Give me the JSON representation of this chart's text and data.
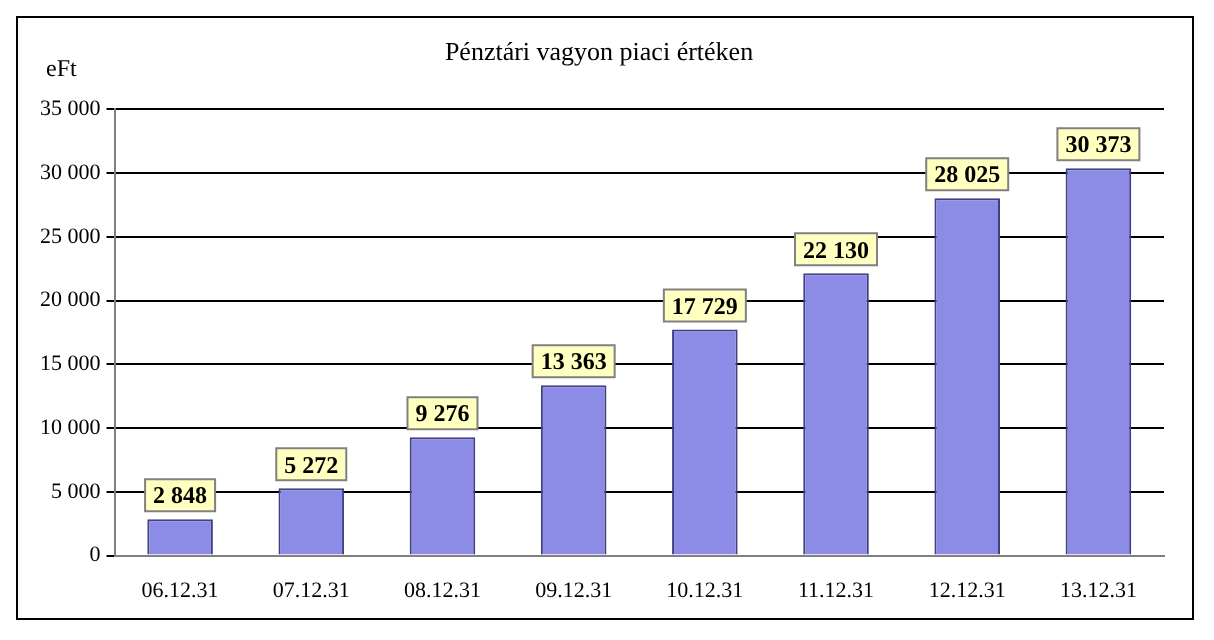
{
  "chart_data": {
    "type": "bar",
    "title": "Pénztári vagyon piaci értéken",
    "ylabel": "eFt",
    "categories": [
      "06.12.31",
      "07.12.31",
      "08.12.31",
      "09.12.31",
      "10.12.31",
      "11.12.31",
      "12.12.31",
      "13.12.31"
    ],
    "values": [
      2848,
      5272,
      9276,
      13363,
      17729,
      22130,
      28025,
      30373
    ],
    "value_labels": [
      "2 848",
      "5 272",
      "9 276",
      "13 363",
      "17 729",
      "22 130",
      "28 025",
      "30 373"
    ],
    "color": "#8c8ce6",
    "ylim": [
      0,
      35000
    ],
    "yticks": [
      {
        "value": 0,
        "label": "0"
      },
      {
        "value": 5000,
        "label": "5 000"
      },
      {
        "value": 10000,
        "label": "10 000"
      },
      {
        "value": 15000,
        "label": "15 000"
      },
      {
        "value": 20000,
        "label": "20 000"
      },
      {
        "value": 25000,
        "label": "25 000"
      },
      {
        "value": 30000,
        "label": "30 000"
      },
      {
        "value": 35000,
        "label": "35 000"
      }
    ],
    "grid": "y"
  }
}
